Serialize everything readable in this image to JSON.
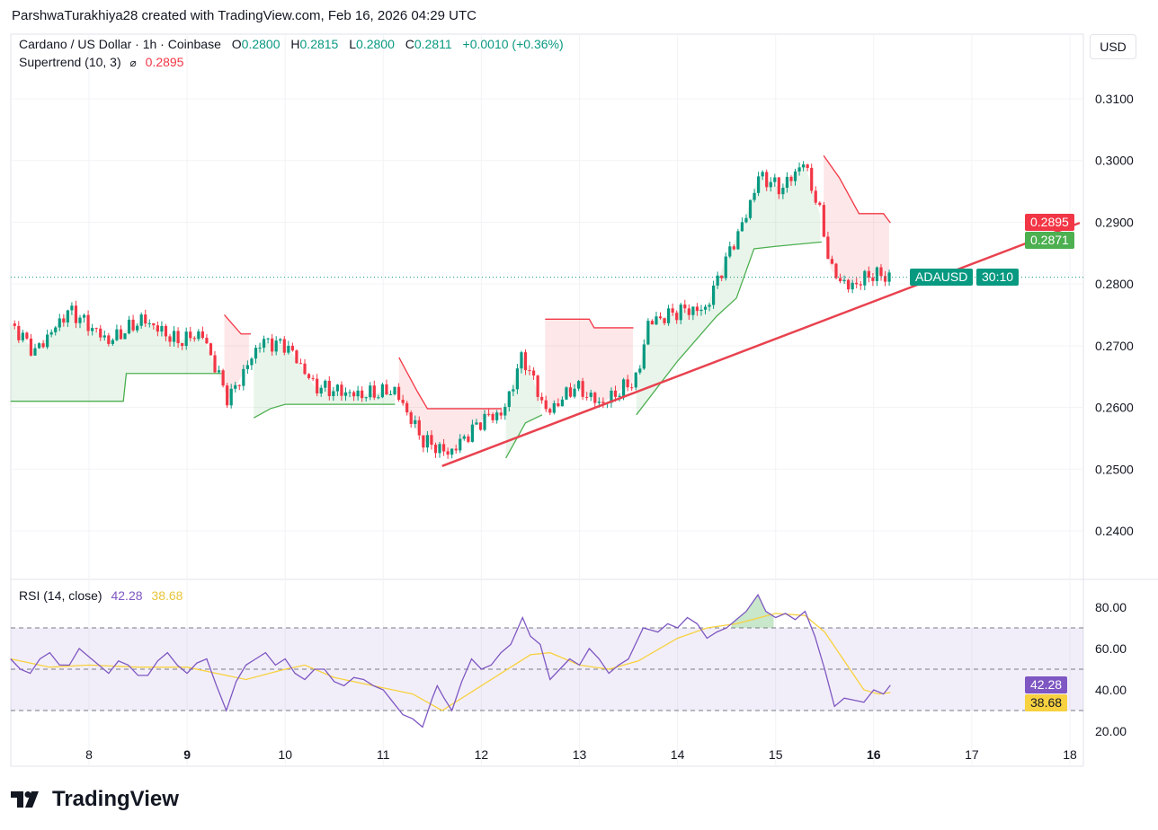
{
  "credit": "ParshwaTurakhiya28 created with TradingView.com, Feb 16, 2026 04:29 UTC",
  "legend": {
    "symbol": "Cardano / US Dollar · 1h · Coinbase",
    "o_label": "O",
    "o": "0.2800",
    "h_label": "H",
    "h": "0.2815",
    "l_label": "L",
    "l": "0.2800",
    "c_label": "C",
    "c": "0.2811",
    "change": "+0.0010 (+0.36%)",
    "supertrend": "Supertrend (10, 3)",
    "supertrend_icon": "hidden-eye-icon",
    "supertrend_value": "0.2895"
  },
  "currency_button": "USD",
  "price_tags": {
    "supertrend": "0.2895",
    "supertrend2": "0.2871",
    "symbol": "ADAUSD",
    "countdown": "30:10"
  },
  "rsi_legend": {
    "label": "RSI (14, close)",
    "rsi": "42.28",
    "ma": "38.68"
  },
  "rsi_tags": {
    "rsi": "42.28",
    "ma": "38.68"
  },
  "brand": "TradingView",
  "colors": {
    "up": "#089981",
    "down": "#f23645",
    "rsi": "#7e57c2",
    "ma": "#f7d13f",
    "trendline": "#e8424f"
  },
  "chart_data": [
    {
      "type": "candlestick",
      "title": "Cardano / US Dollar · 1h · Coinbase",
      "ylim": [
        0.235,
        0.315
      ],
      "xlim": [
        7.2,
        18.2
      ],
      "y_ticks": [
        "0.2400",
        "0.2500",
        "0.2600",
        "0.2700",
        "0.2800",
        "0.2900",
        "0.3000",
        "0.3100"
      ],
      "y_tick_values": [
        0.24,
        0.25,
        0.26,
        0.27,
        0.28,
        0.29,
        0.3,
        0.31
      ],
      "x_ticks": [
        "8",
        "9",
        "10",
        "11",
        "12",
        "13",
        "14",
        "15",
        "16",
        "17",
        "18"
      ],
      "x_tick_values": [
        8,
        9,
        10,
        11,
        12,
        13,
        14,
        15,
        16,
        17,
        18
      ],
      "x_tick_bold": [
        "9",
        "16"
      ],
      "close_path": [
        [
          7.2,
          0.2736
        ],
        [
          7.45,
          0.269
        ],
        [
          7.8,
          0.2758
        ],
        [
          8.2,
          0.2707
        ],
        [
          8.55,
          0.2743
        ],
        [
          8.9,
          0.2707
        ],
        [
          9.15,
          0.272
        ],
        [
          9.42,
          0.2612
        ],
        [
          9.75,
          0.2707
        ],
        [
          10.02,
          0.27
        ],
        [
          10.3,
          0.2634
        ],
        [
          10.75,
          0.262
        ],
        [
          11.12,
          0.2627
        ],
        [
          11.4,
          0.2547
        ],
        [
          11.67,
          0.2525
        ],
        [
          12.03,
          0.2583
        ],
        [
          12.22,
          0.259
        ],
        [
          12.42,
          0.2685
        ],
        [
          12.67,
          0.259
        ],
        [
          12.95,
          0.2634
        ],
        [
          13.22,
          0.2605
        ],
        [
          13.6,
          0.2649
        ],
        [
          13.69,
          0.2736
        ],
        [
          14.05,
          0.2758
        ],
        [
          14.28,
          0.2758
        ],
        [
          14.47,
          0.2831
        ],
        [
          14.7,
          0.2911
        ],
        [
          14.83,
          0.2976
        ],
        [
          15.06,
          0.2954
        ],
        [
          15.29,
          0.2998
        ],
        [
          15.47,
          0.2904
        ],
        [
          15.56,
          0.2823
        ],
        [
          15.75,
          0.2794
        ],
        [
          15.98,
          0.2816
        ],
        [
          16.17,
          0.2811
        ]
      ],
      "last_price": 0.2811,
      "supertrend": [
        {
          "trend": "up",
          "points": [
            [
              7.2,
              0.261
            ],
            [
              8.35,
              0.261
            ],
            [
              8.38,
              0.2655
            ],
            [
              9.35,
              0.2655
            ]
          ]
        },
        {
          "trend": "down",
          "points": [
            [
              9.38,
              0.275
            ],
            [
              9.55,
              0.2719
            ],
            [
              9.65,
              0.2719
            ]
          ]
        },
        {
          "trend": "up",
          "points": [
            [
              9.68,
              0.2583
            ],
            [
              9.85,
              0.2598
            ],
            [
              10.0,
              0.2605
            ],
            [
              11.12,
              0.2605
            ]
          ]
        },
        {
          "trend": "down",
          "points": [
            [
              11.16,
              0.2681
            ],
            [
              11.35,
              0.2625
            ],
            [
              11.45,
              0.2598
            ],
            [
              12.2,
              0.2598
            ]
          ]
        },
        {
          "trend": "up",
          "points": [
            [
              12.25,
              0.2518
            ],
            [
              12.45,
              0.2575
            ],
            [
              12.62,
              0.2588
            ]
          ]
        },
        {
          "trend": "down",
          "points": [
            [
              12.65,
              0.2743
            ],
            [
              13.1,
              0.2743
            ],
            [
              13.15,
              0.2729
            ],
            [
              13.55,
              0.2729
            ]
          ]
        },
        {
          "trend": "up",
          "points": [
            [
              13.58,
              0.2588
            ],
            [
              14.0,
              0.2675
            ],
            [
              14.4,
              0.2748
            ],
            [
              14.6,
              0.2777
            ],
            [
              14.78,
              0.2857
            ],
            [
              15.0,
              0.2861
            ],
            [
              15.47,
              0.2868
            ]
          ]
        },
        {
          "trend": "down",
          "points": [
            [
              15.49,
              0.3008
            ],
            [
              15.65,
              0.2972
            ],
            [
              15.85,
              0.2914
            ],
            [
              16.1,
              0.2914
            ],
            [
              16.17,
              0.2899
            ]
          ]
        }
      ],
      "trendline": [
        [
          11.6,
          0.2505
        ],
        [
          18.1,
          0.2899
        ]
      ]
    },
    {
      "type": "line",
      "title": "RSI (14, close)",
      "ylim": [
        15,
        88
      ],
      "y_ticks": [
        "20.00",
        "40.00",
        "60.00",
        "80.00"
      ],
      "y_tick_values": [
        20,
        40,
        60,
        80
      ],
      "bands": [
        30,
        50,
        70
      ],
      "series": [
        {
          "name": "RSI",
          "points": [
            [
              7.2,
              55
            ],
            [
              7.3,
              50
            ],
            [
              7.4,
              48
            ],
            [
              7.5,
              55
            ],
            [
              7.6,
              58
            ],
            [
              7.7,
              52
            ],
            [
              7.8,
              52
            ],
            [
              7.9,
              60
            ],
            [
              8.0,
              56
            ],
            [
              8.1,
              52
            ],
            [
              8.2,
              48
            ],
            [
              8.3,
              54
            ],
            [
              8.4,
              52
            ],
            [
              8.5,
              47
            ],
            [
              8.6,
              47
            ],
            [
              8.7,
              54
            ],
            [
              8.8,
              58
            ],
            [
              8.9,
              52
            ],
            [
              9.0,
              48
            ],
            [
              9.1,
              53
            ],
            [
              9.2,
              55
            ],
            [
              9.3,
              42
            ],
            [
              9.4,
              30
            ],
            [
              9.5,
              44
            ],
            [
              9.6,
              52
            ],
            [
              9.7,
              55
            ],
            [
              9.8,
              58
            ],
            [
              9.9,
              52
            ],
            [
              10.0,
              55
            ],
            [
              10.1,
              48
            ],
            [
              10.2,
              45
            ],
            [
              10.3,
              50
            ],
            [
              10.4,
              50
            ],
            [
              10.5,
              44
            ],
            [
              10.6,
              42
            ],
            [
              10.7,
              46
            ],
            [
              10.8,
              45
            ],
            [
              10.9,
              42
            ],
            [
              11.0,
              40
            ],
            [
              11.1,
              34
            ],
            [
              11.2,
              28
            ],
            [
              11.3,
              26
            ],
            [
              11.4,
              22
            ],
            [
              11.5,
              36
            ],
            [
              11.55,
              42
            ],
            [
              11.62,
              36
            ],
            [
              11.7,
              30
            ],
            [
              11.8,
              44
            ],
            [
              11.9,
              55
            ],
            [
              12.0,
              50
            ],
            [
              12.1,
              52
            ],
            [
              12.2,
              58
            ],
            [
              12.3,
              62
            ],
            [
              12.42,
              75
            ],
            [
              12.5,
              66
            ],
            [
              12.6,
              62
            ],
            [
              12.7,
              45
            ],
            [
              12.8,
              50
            ],
            [
              12.9,
              55
            ],
            [
              13.0,
              52
            ],
            [
              13.1,
              60
            ],
            [
              13.2,
              55
            ],
            [
              13.3,
              48
            ],
            [
              13.4,
              52
            ],
            [
              13.5,
              55
            ],
            [
              13.65,
              70
            ],
            [
              13.8,
              68
            ],
            [
              13.9,
              72
            ],
            [
              14.0,
              70
            ],
            [
              14.1,
              75
            ],
            [
              14.2,
              72
            ],
            [
              14.3,
              65
            ],
            [
              14.4,
              68
            ],
            [
              14.5,
              70
            ],
            [
              14.6,
              74
            ],
            [
              14.7,
              78
            ],
            [
              14.82,
              86
            ],
            [
              14.9,
              78
            ],
            [
              15.0,
              75
            ],
            [
              15.1,
              77
            ],
            [
              15.2,
              74
            ],
            [
              15.3,
              78
            ],
            [
              15.4,
              66
            ],
            [
              15.5,
              50
            ],
            [
              15.6,
              32
            ],
            [
              15.7,
              36
            ],
            [
              15.8,
              35
            ],
            [
              15.9,
              34
            ],
            [
              16.0,
              40
            ],
            [
              16.1,
              38
            ],
            [
              16.17,
              42.28
            ]
          ]
        },
        {
          "name": "RSI-based MA",
          "points": [
            [
              7.2,
              55
            ],
            [
              7.6,
              51
            ],
            [
              8.0,
              52
            ],
            [
              8.5,
              51
            ],
            [
              9.0,
              51
            ],
            [
              9.3,
              48
            ],
            [
              9.6,
              45
            ],
            [
              10.0,
              50
            ],
            [
              10.2,
              52
            ],
            [
              10.5,
              46
            ],
            [
              11.0,
              41
            ],
            [
              11.3,
              38
            ],
            [
              11.6,
              30
            ],
            [
              12.0,
              42
            ],
            [
              12.5,
              57
            ],
            [
              12.7,
              58
            ],
            [
              13.0,
              52
            ],
            [
              13.3,
              50
            ],
            [
              13.6,
              54
            ],
            [
              14.0,
              65
            ],
            [
              14.3,
              70
            ],
            [
              14.6,
              72
            ],
            [
              15.0,
              77
            ],
            [
              15.3,
              76
            ],
            [
              15.5,
              68
            ],
            [
              15.7,
              54
            ],
            [
              15.9,
              40
            ],
            [
              16.05,
              38
            ],
            [
              16.17,
              38.68
            ]
          ]
        }
      ]
    }
  ]
}
